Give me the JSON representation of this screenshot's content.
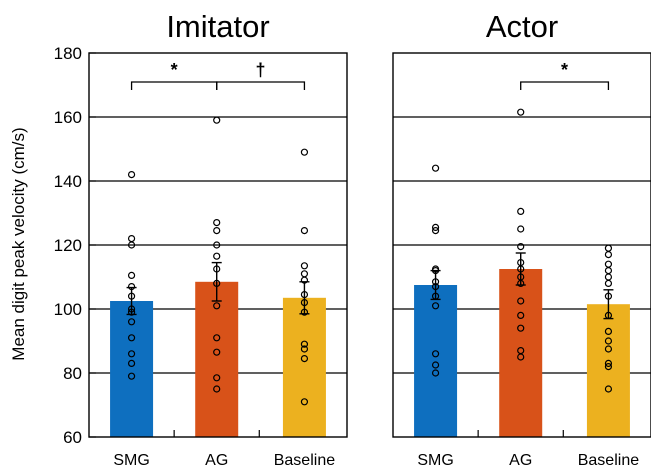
{
  "chart_data": {
    "type": "bar",
    "ylabel": "Mean digit peak velocity (cm/s)",
    "ylim": [
      60,
      180
    ],
    "yticks": [
      60,
      80,
      100,
      120,
      140,
      160,
      180
    ],
    "grid": true,
    "categories": [
      "SMG",
      "AG",
      "Baseline"
    ],
    "colors": {
      "SMG": "#0e6fbf",
      "AG": "#d85219",
      "Baseline": "#ecb11f"
    },
    "panels": [
      {
        "title": "Imitator",
        "bars": [
          {
            "category": "SMG",
            "mean": 102.5,
            "error": 4.2,
            "points": [
              142,
              122,
              120,
              110.5,
              107,
              104,
              100,
              99,
              96,
              91,
              86,
              83,
              79
            ]
          },
          {
            "category": "AG",
            "mean": 108.5,
            "error": 6,
            "points": [
              159,
              127,
              124.5,
              120,
              116.5,
              112.5,
              108,
              101,
              91,
              86.5,
              78.5,
              75
            ]
          },
          {
            "category": "Baseline",
            "mean": 103.5,
            "error": 5,
            "points": [
              149,
              124.5,
              113.5,
              111,
              109,
              104.5,
              102,
              99,
              89,
              87.5,
              84.5,
              71
            ]
          }
        ],
        "significance": [
          {
            "from": "SMG",
            "to": "AG",
            "label": "*"
          },
          {
            "from": "AG",
            "to": "Baseline",
            "label": "†"
          }
        ]
      },
      {
        "title": "Actor",
        "bars": [
          {
            "category": "SMG",
            "mean": 107.5,
            "error": 4.5,
            "points": [
              144,
              125.5,
              124.5,
              112.5,
              112,
              108.5,
              107,
              104,
              101,
              86,
              82.5,
              80
            ]
          },
          {
            "category": "AG",
            "mean": 112.5,
            "error": 5,
            "points": [
              161.5,
              130.5,
              125,
              119.5,
              114.5,
              112.5,
              110,
              108,
              102.5,
              98,
              94,
              87,
              85
            ]
          },
          {
            "category": "Baseline",
            "mean": 101.5,
            "error": 4.5,
            "points": [
              119,
              117,
              114,
              112,
              110,
              108,
              104,
              98,
              93,
              90,
              87.5,
              83,
              82,
              75
            ]
          }
        ],
        "significance": [
          {
            "from": "AG",
            "to": "Baseline",
            "label": "*"
          }
        ]
      }
    ]
  }
}
